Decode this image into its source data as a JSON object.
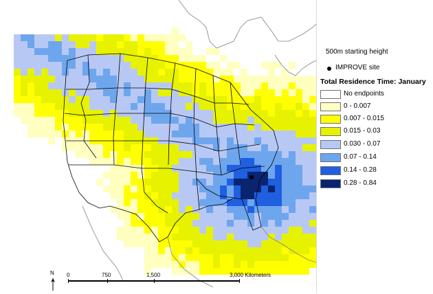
{
  "legend": {
    "starting_height": "500m starting height",
    "site_label": "IMPROVE site",
    "title": "Total Residence Time: January",
    "classes": [
      {
        "label": "No endpoints",
        "color": "#ffffff"
      },
      {
        "label": "0 - 0.007",
        "color": "#ffffc0"
      },
      {
        "label": "0.007 - 0.015",
        "color": "#ffff00"
      },
      {
        "label": "0.015 - 0.03",
        "color": "#e6f200"
      },
      {
        "label": "0.030 - 0.07",
        "color": "#b8c8f4"
      },
      {
        "label": "0.07 - 0.14",
        "color": "#6ea6ee"
      },
      {
        "label": "0.14 - 0.28",
        "color": "#1f5fe0"
      },
      {
        "label": "0.28 - 0.84",
        "color": "#0a2470"
      }
    ]
  },
  "scale": {
    "ticks": [
      "0",
      "750",
      "1,500",
      "3,000 Kilometers"
    ]
  },
  "north_label": "N",
  "colors": {
    "boundary": "#000000",
    "land_outline": "#808080"
  }
}
